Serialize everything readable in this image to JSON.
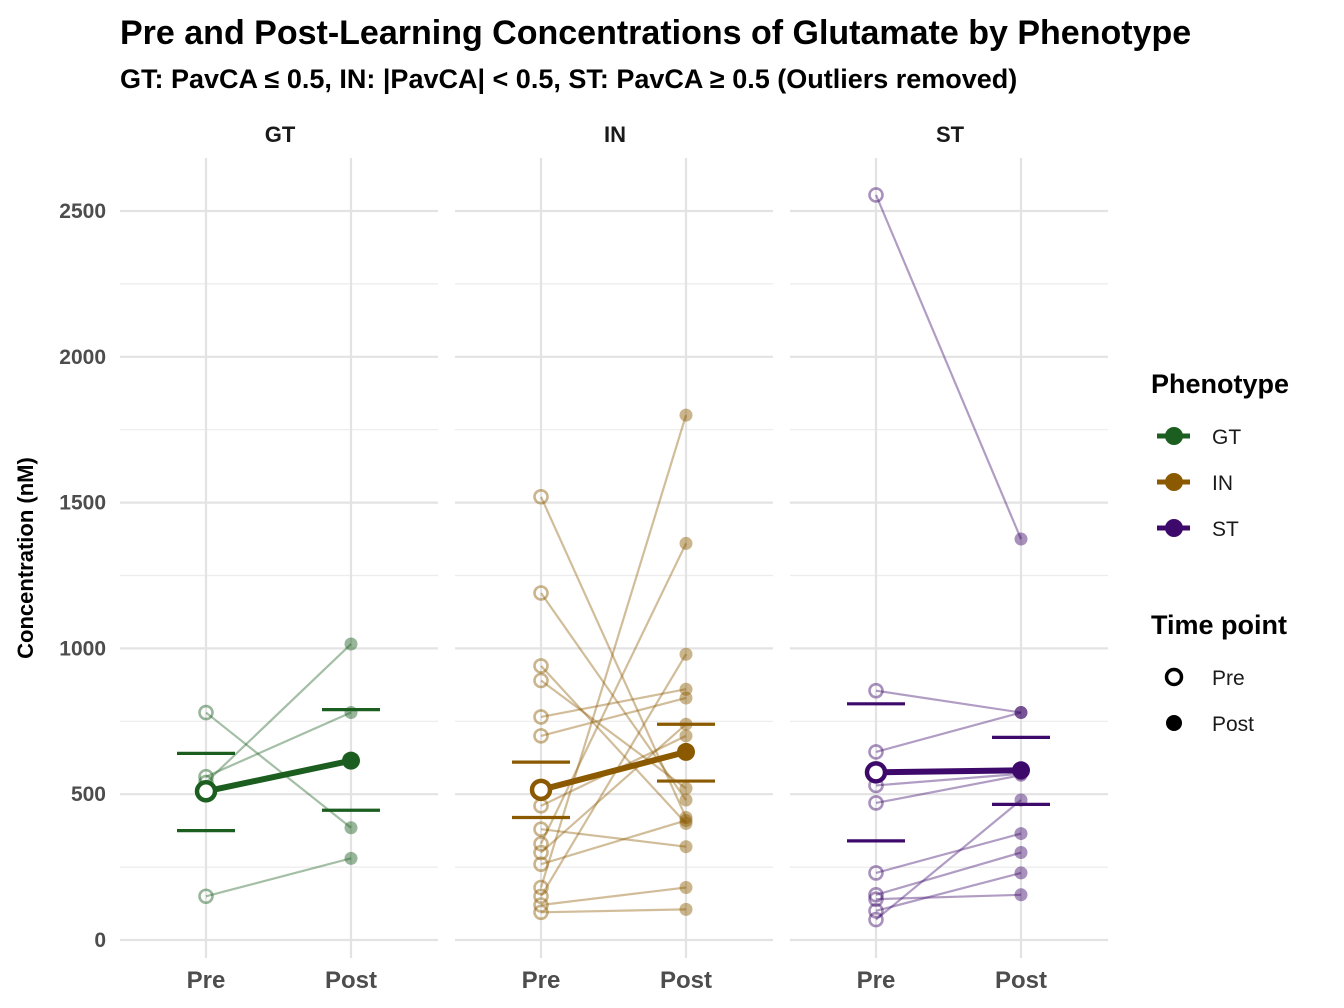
{
  "chart_data": {
    "type": "line",
    "title": "Pre and Post-Learning Concentrations of Glutamate by Phenotype",
    "subtitle": "GT: PavCA ≤ 0.5, IN: |PavCA| < 0.5, ST: PavCA ≥ 0.5 (Outliers removed)",
    "ylabel": "Concentration (nM)",
    "xlabel": "",
    "ylim": [
      0,
      2600
    ],
    "yticks": [
      0,
      500,
      1000,
      1500,
      2000,
      2500
    ],
    "categories": [
      "Pre",
      "Post"
    ],
    "grid": true,
    "legend_placement": "right",
    "panels": [
      {
        "label": "GT",
        "color": "#1b5e20",
        "subjects": [
          [
            780,
            385
          ],
          [
            560,
            780
          ],
          [
            540,
            1015
          ],
          [
            150,
            280
          ]
        ],
        "mean": [
          510,
          615
        ],
        "se_pre": [
          375,
          640
        ],
        "se_post": [
          445,
          790
        ]
      },
      {
        "label": "IN",
        "color": "#8b5a00",
        "subjects": [
          [
            1520,
            420
          ],
          [
            1190,
            480
          ],
          [
            940,
            400
          ],
          [
            890,
            520
          ],
          [
            765,
            860
          ],
          [
            700,
            830
          ],
          [
            460,
            700
          ],
          [
            380,
            320
          ],
          [
            330,
            1360
          ],
          [
            300,
            740
          ],
          [
            260,
            410
          ],
          [
            180,
            1800
          ],
          [
            150,
            980
          ],
          [
            120,
            180
          ],
          [
            95,
            105
          ]
        ],
        "mean": [
          515,
          645
        ],
        "se_pre": [
          420,
          610
        ],
        "se_post": [
          545,
          740
        ]
      },
      {
        "label": "ST",
        "color": "#3d0a6b",
        "subjects": [
          [
            2555,
            1375
          ],
          [
            855,
            780
          ],
          [
            645,
            780
          ],
          [
            575,
            580
          ],
          [
            530,
            570
          ],
          [
            470,
            565
          ],
          [
            230,
            365
          ],
          [
            155,
            300
          ],
          [
            140,
            155
          ],
          [
            100,
            230
          ],
          [
            70,
            480
          ]
        ],
        "mean": [
          575,
          582
        ],
        "se_pre": [
          340,
          810
        ],
        "se_post": [
          465,
          695
        ]
      }
    ]
  },
  "legend": {
    "phenotype_title": "Phenotype",
    "phenotype_items": [
      {
        "label": "GT",
        "color": "#1b5e20"
      },
      {
        "label": "IN",
        "color": "#8b5a00"
      },
      {
        "label": "ST",
        "color": "#3d0a6b"
      }
    ],
    "timepoint_title": "Time point",
    "timepoint_items": [
      {
        "label": "Pre",
        "shape": "open-circle"
      },
      {
        "label": "Post",
        "shape": "filled-circle"
      }
    ]
  }
}
